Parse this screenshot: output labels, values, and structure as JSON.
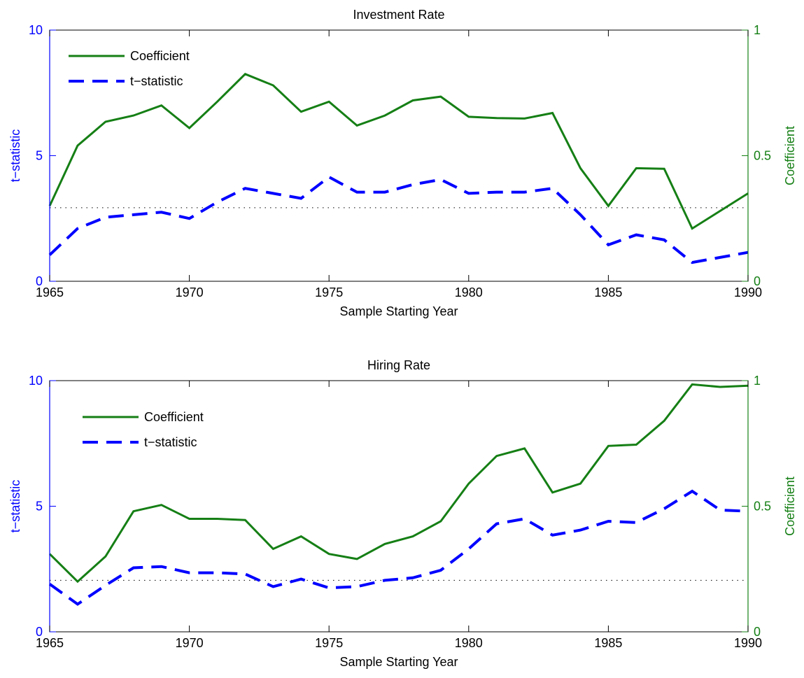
{
  "colors": {
    "coefficient": "#157F15",
    "tstat": "#0000FF",
    "reference": "#000000",
    "axis": "#000000"
  },
  "chart_data": [
    {
      "type": "line",
      "title": "Investment Rate",
      "xlabel": "Sample Starting Year",
      "ylabel_left": "t−statistic",
      "ylabel_right": "Coefficient",
      "xlim": [
        1965,
        1990
      ],
      "ylim_left": [
        0,
        10
      ],
      "ylim_right": [
        0,
        1
      ],
      "xticks": [
        "1965",
        "1970",
        "1975",
        "1980",
        "1985",
        "1990"
      ],
      "yticks_left": [
        "0",
        "5",
        "10"
      ],
      "yticks_right": [
        "0",
        "0.5",
        "1"
      ],
      "legend_position": "top-left",
      "legend": [
        "Coefficient",
        "t−statistic"
      ],
      "reference_line_left": 2.93,
      "x": [
        1965,
        1966,
        1967,
        1968,
        1969,
        1970,
        1971,
        1972,
        1973,
        1974,
        1975,
        1976,
        1977,
        1978,
        1979,
        1980,
        1981,
        1982,
        1983,
        1984,
        1985,
        1986,
        1987,
        1988,
        1989,
        1990
      ],
      "series": [
        {
          "name": "Coefficient",
          "axis": "right",
          "style": "solid",
          "values": [
            0.3,
            0.54,
            0.635,
            0.66,
            0.7,
            0.61,
            0.715,
            0.825,
            0.78,
            0.675,
            0.715,
            0.62,
            0.66,
            0.72,
            0.735,
            0.655,
            0.65,
            0.648,
            0.67,
            0.45,
            0.3,
            0.45,
            0.448,
            0.21,
            0.28,
            0.35
          ]
        },
        {
          "name": "t−statistic",
          "axis": "left",
          "style": "dashed",
          "values": [
            1.05,
            2.1,
            2.55,
            2.65,
            2.75,
            2.5,
            3.15,
            3.7,
            3.5,
            3.3,
            4.15,
            3.55,
            3.55,
            3.85,
            4.05,
            3.5,
            3.55,
            3.55,
            3.7,
            2.65,
            1.45,
            1.85,
            1.65,
            0.75,
            0.95,
            1.15
          ]
        }
      ]
    },
    {
      "type": "line",
      "title": "Hiring Rate",
      "xlabel": "Sample Starting Year",
      "ylabel_left": "t−statistic",
      "ylabel_right": "Coefficient",
      "xlim": [
        1965,
        1990
      ],
      "ylim_left": [
        0,
        10
      ],
      "ylim_right": [
        0,
        1
      ],
      "xticks": [
        "1965",
        "1970",
        "1975",
        "1980",
        "1985",
        "1990"
      ],
      "yticks_left": [
        "0",
        "5",
        "10"
      ],
      "yticks_right": [
        "0",
        "0.5",
        "1"
      ],
      "legend_position": "top-left",
      "legend": [
        "Coefficient",
        "t−statistic"
      ],
      "reference_line_left": 2.05,
      "x": [
        1965,
        1966,
        1967,
        1968,
        1969,
        1970,
        1971,
        1972,
        1973,
        1974,
        1975,
        1976,
        1977,
        1978,
        1979,
        1980,
        1981,
        1982,
        1983,
        1984,
        1985,
        1986,
        1987,
        1988,
        1989,
        1990
      ],
      "series": [
        {
          "name": "Coefficient",
          "axis": "right",
          "style": "solid",
          "values": [
            0.31,
            0.2,
            0.3,
            0.48,
            0.505,
            0.45,
            0.45,
            0.445,
            0.33,
            0.38,
            0.31,
            0.29,
            0.35,
            0.38,
            0.44,
            0.59,
            0.7,
            0.73,
            0.555,
            0.59,
            0.74,
            0.745,
            0.84,
            0.985,
            0.975,
            0.98
          ]
        },
        {
          "name": "t−statistic",
          "axis": "left",
          "style": "dashed",
          "values": [
            1.9,
            1.1,
            1.85,
            2.55,
            2.6,
            2.35,
            2.35,
            2.3,
            1.8,
            2.1,
            1.75,
            1.8,
            2.05,
            2.15,
            2.45,
            3.3,
            4.3,
            4.5,
            3.85,
            4.05,
            4.4,
            4.35,
            4.9,
            5.6,
            4.85,
            4.8
          ]
        }
      ]
    }
  ]
}
